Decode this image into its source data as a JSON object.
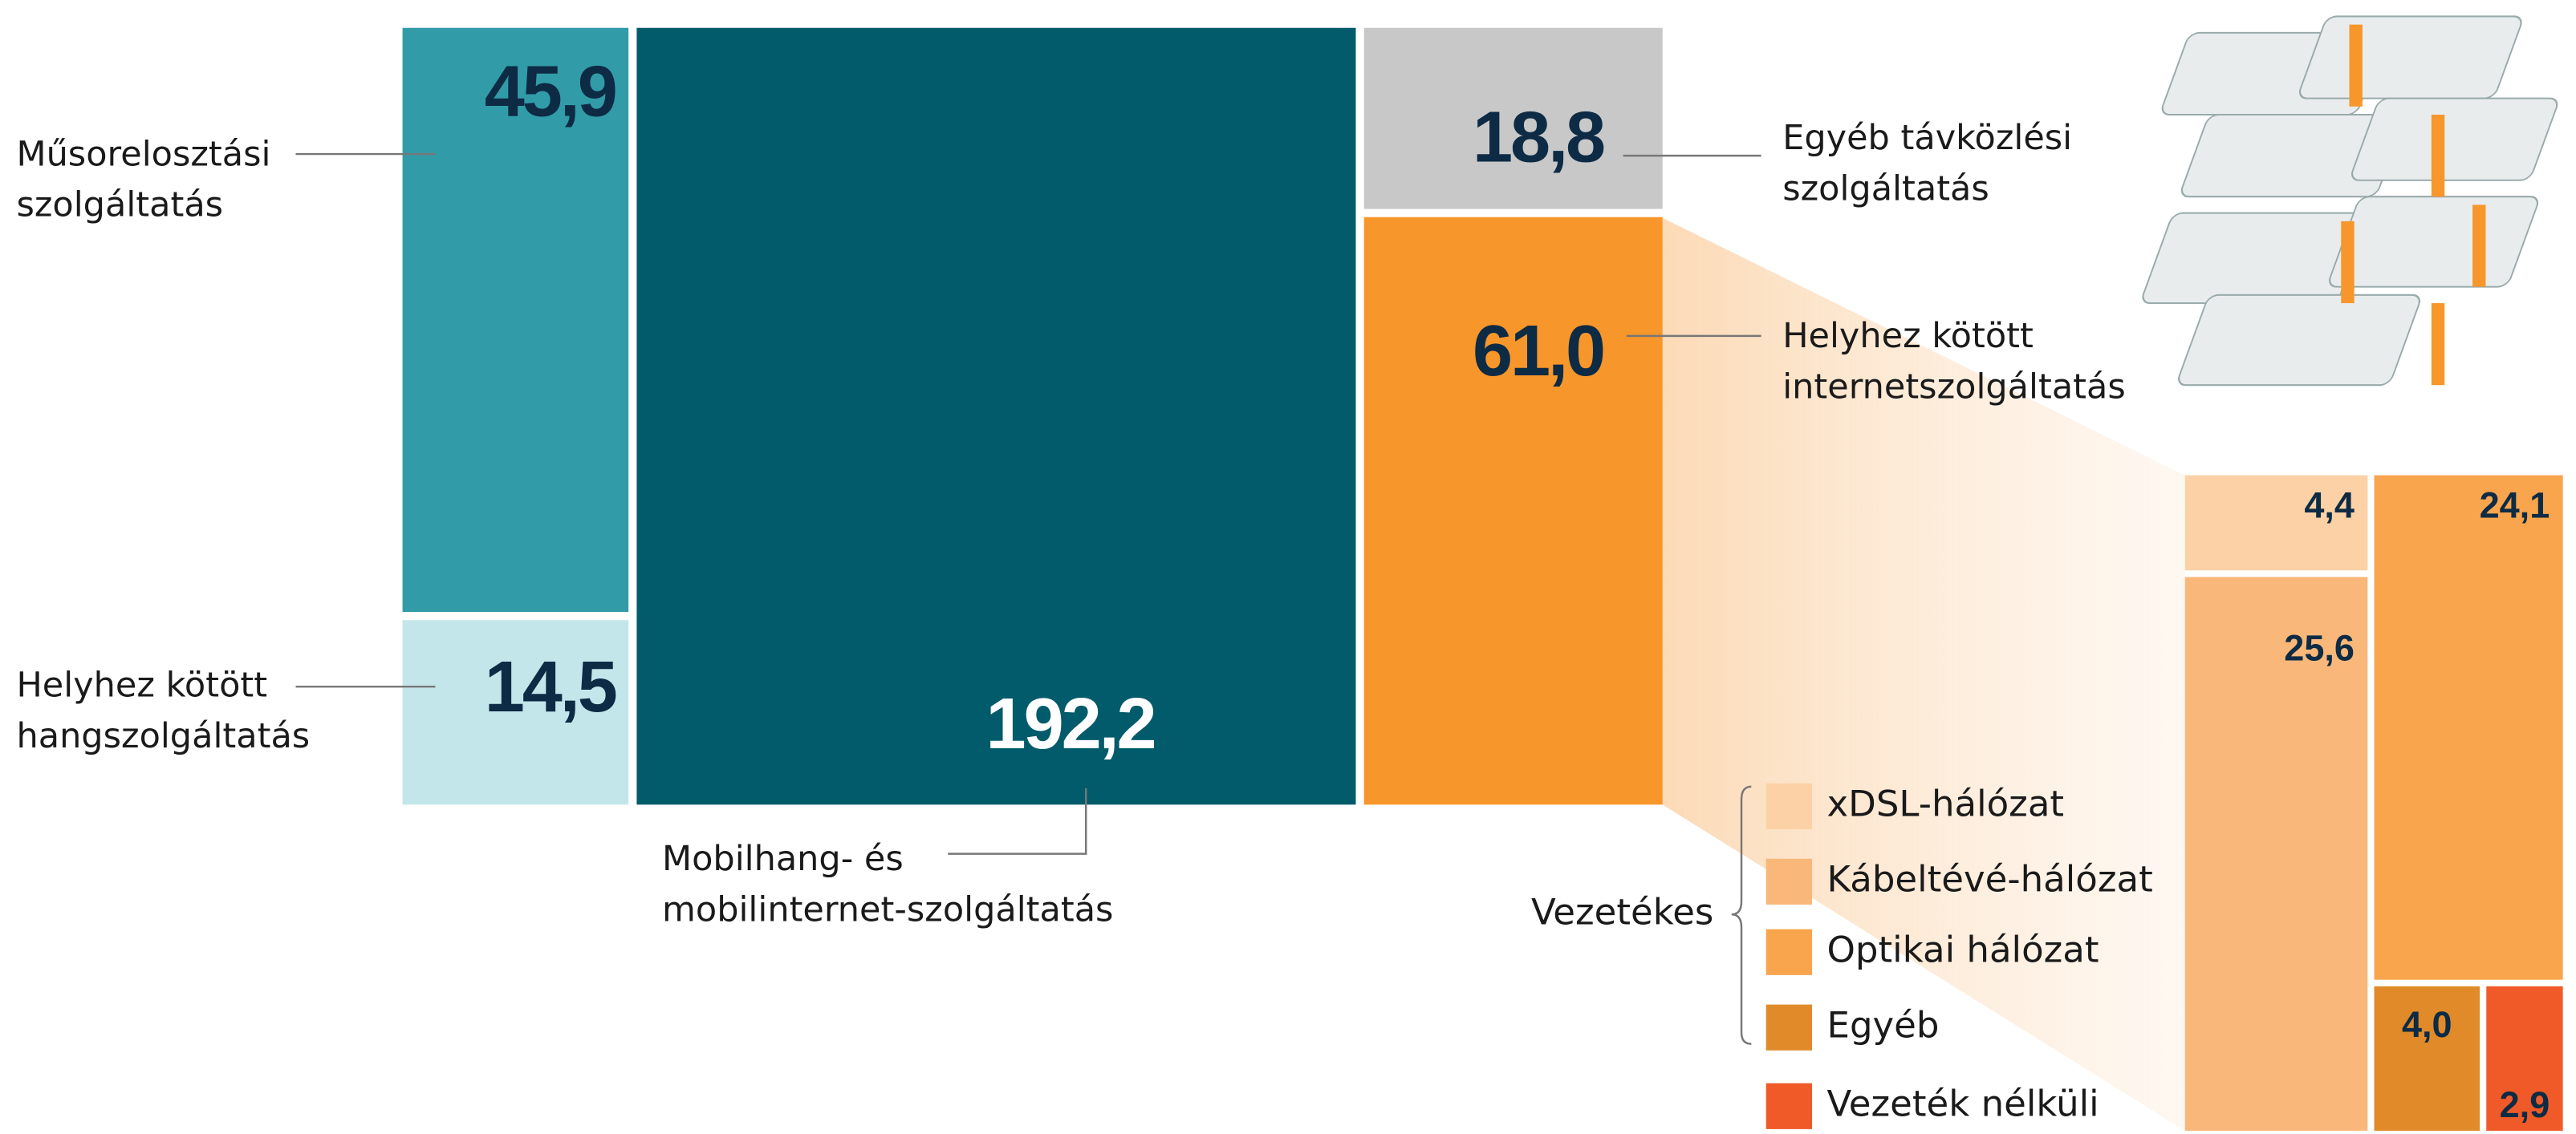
{
  "chart_data": [
    {
      "type": "treemap",
      "categories": [
        "Műsorelosztási szolgáltatás",
        "Helyhez kötött hangszolgáltatás",
        "Mobilhang- és mobilinternet-szolgáltatás",
        "Egyéb távközlési szolgáltatás",
        "Helyhez kötött internetszolgáltatás"
      ],
      "values": [
        45.9,
        14.5,
        192.2,
        18.8,
        61.0
      ],
      "value_labels": [
        "45,9",
        "14,5",
        "192,2",
        "18,8",
        "61,0"
      ],
      "colors": [
        "#329ba8",
        "#c3e6ea",
        "#025b6a",
        "#c8c8c8",
        "#f7962a"
      ]
    },
    {
      "type": "treemap",
      "group_label": "Vezetékes",
      "categories": [
        "xDSL-hálózat",
        "Kábeltévé-hálózat",
        "Optikai hálózat",
        "Egyéb",
        "Vezeték nélküli"
      ],
      "values": [
        4.4,
        25.6,
        24.1,
        4.0,
        2.9
      ],
      "value_labels": [
        "4,4",
        "25,6",
        "24,1",
        "4,0",
        "2,9"
      ],
      "colors": [
        "#fbd1a5",
        "#f9b77a",
        "#f8a54d",
        "#e08a2a",
        "#ef5a28"
      ]
    }
  ]
}
